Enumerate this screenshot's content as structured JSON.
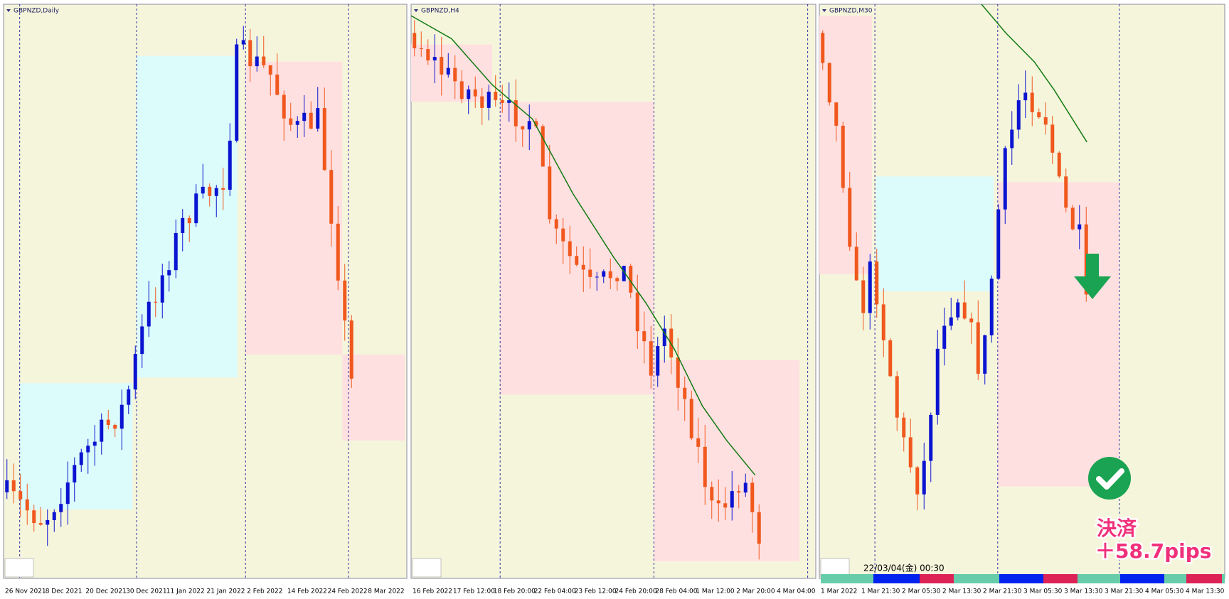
{
  "panels": [
    {
      "title": "GBPNZD,Daily",
      "x_labels": [
        "26 Nov 2021",
        "8 Dec 2021",
        "20 Dec 2021",
        "30 Dec 2021",
        "11 Jan 2022",
        "21 Jan 2022",
        "2 Feb 2022",
        "14 Feb 2022",
        "24 Feb 2022",
        "8 Mar 2022"
      ]
    },
    {
      "title": "GBPNZD,H4",
      "x_labels": [
        "16 Feb 2022",
        "17 Feb 12:00",
        "18 Feb 20:00",
        "22 Feb 04:00",
        "23 Feb 12:00",
        "24 Feb 20:00",
        "28 Feb 04:00",
        "1 Mar 12:00",
        "2 Mar 20:00",
        "4 Mar 04:00"
      ]
    },
    {
      "title": "GBPNZD,M30",
      "x_labels": [
        "1 Mar 2022",
        "1 Mar 21:30",
        "2 Mar 05:30",
        "2 Mar 13:30",
        "2 Mar 21:30",
        "3 Mar 05:30",
        "3 Mar 13:30",
        "3 Mar 21:30",
        "4 Mar 05:30",
        "4 Mar 13:30"
      ]
    }
  ],
  "status": {
    "timestamp": "22/03/04(金) 00:30"
  },
  "annotation": {
    "action": "決済",
    "result": "＋58.7pips"
  }
}
